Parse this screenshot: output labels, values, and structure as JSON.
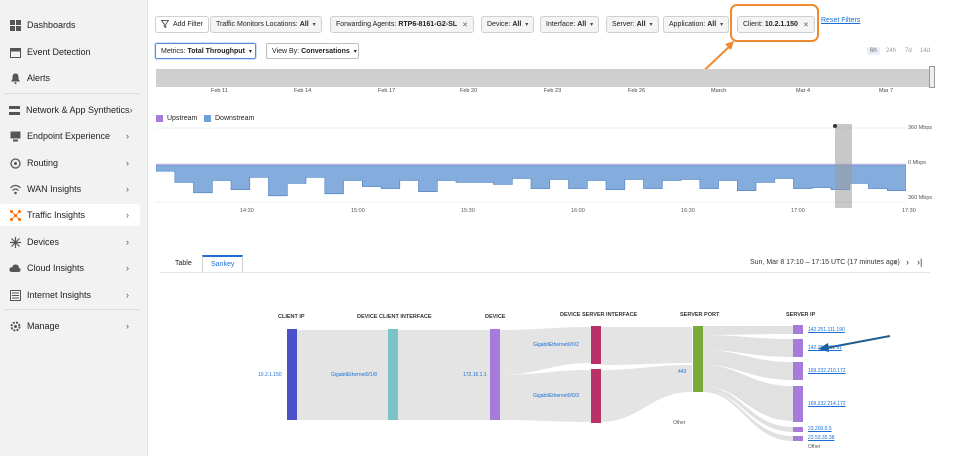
{
  "sidebar": {
    "items": [
      {
        "label": "Dashboards",
        "icon": "grid-icon",
        "chevron": false
      },
      {
        "label": "Event Detection",
        "icon": "calendar-icon",
        "chevron": false
      },
      {
        "label": "Alerts",
        "icon": "bell-icon",
        "chevron": false
      },
      {
        "label": "Network & App Synthetics",
        "icon": "network-icon",
        "chevron": true
      },
      {
        "label": "Endpoint Experience",
        "icon": "laptop-icon",
        "chevron": true
      },
      {
        "label": "Routing",
        "icon": "routing-icon",
        "chevron": true
      },
      {
        "label": "WAN Insights",
        "icon": "wifi-icon",
        "chevron": true
      },
      {
        "label": "Traffic Insights",
        "icon": "traffic-icon",
        "chevron": true
      },
      {
        "label": "Devices",
        "icon": "devices-icon",
        "chevron": true
      },
      {
        "label": "Cloud Insights",
        "icon": "cloud-icon",
        "chevron": true
      },
      {
        "label": "Internet Insights",
        "icon": "internet-icon",
        "chevron": true
      },
      {
        "label": "Manage",
        "icon": "gear-icon",
        "chevron": true
      }
    ],
    "active_color": "#ff6b00"
  },
  "filters": {
    "add_filter": "Add Filter",
    "chips": [
      {
        "key": "Traffic Monitors Locations:",
        "value": "All",
        "suffix": "dropdown"
      },
      {
        "key": "Forwarding Agents:",
        "value": "RTP6-8161-G2-SL",
        "suffix": "close"
      },
      {
        "key": "Device:",
        "value": "All",
        "suffix": "dropdown"
      },
      {
        "key": "Interface:",
        "value": "All",
        "suffix": "dropdown"
      },
      {
        "key": "Server:",
        "value": "All",
        "suffix": "dropdown"
      },
      {
        "key": "Application:",
        "value": "All",
        "suffix": "dropdown"
      },
      {
        "key": "Client:",
        "value": "10.2.1.150",
        "suffix": "close"
      }
    ],
    "reset": "Reset Filters",
    "highlight_color": "#ef8a2e"
  },
  "controls": {
    "metrics_key": "Metrics:",
    "metrics_value": "Total Throughput",
    "view_key": "View By:",
    "view_value": "Conversations",
    "ranges": [
      "6h",
      "24h",
      "7d",
      "14d"
    ],
    "selected_range": "6h"
  },
  "timeline": {
    "ticks": [
      "Feb 11",
      "Feb 14",
      "Feb 17",
      "Feb 20",
      "Feb 23",
      "Feb 26",
      "March",
      "Mar 4",
      "Mar 7"
    ]
  },
  "chart_data": {
    "type": "area",
    "series": [
      {
        "name": "Upstream",
        "color": "#a77bdc",
        "values": [
          0,
          0,
          0,
          0,
          0,
          0,
          0,
          0,
          0,
          0,
          0,
          0,
          0,
          0,
          0,
          0,
          0,
          0,
          0,
          0,
          0,
          0,
          0,
          0,
          0,
          0,
          0,
          0,
          0,
          0,
          0,
          0,
          0,
          0,
          0,
          0,
          0,
          0,
          0,
          0
        ]
      },
      {
        "name": "Downstream",
        "color": "#6f9fd8",
        "values": [
          -60,
          -170,
          -270,
          -150,
          -240,
          -120,
          -300,
          -180,
          -120,
          -280,
          -150,
          -210,
          -230,
          -150,
          -260,
          -150,
          -170,
          -170,
          -190,
          -130,
          -230,
          -140,
          -230,
          -150,
          -240,
          -140,
          -230,
          -150,
          -140,
          -230,
          -150,
          -250,
          -170,
          -130,
          -230,
          -220,
          -240,
          -180,
          -230,
          -250
        ]
      }
    ],
    "x_ticks": [
      "14:30",
      "15:00",
      "15:30",
      "16:00",
      "16:30",
      "17:00",
      "17:30"
    ],
    "y_ticks": [
      "360 Mbps",
      "0 Mbps",
      "360 Mbps"
    ],
    "ylim": [
      -360,
      360
    ],
    "selected_window": "17:10 - 17:15"
  },
  "tabs": [
    "Table",
    "Sankey"
  ],
  "selected_tab": "Sankey",
  "range_text": "Sun, Mar 8 17:10 – 17:15 UTC",
  "range_ago": "(17 minutes ago)",
  "sankey": {
    "columns": [
      "CLIENT IP",
      "DEVICE CLIENT INTERFACE",
      "DEVICE",
      "DEVICE SERVER INTERFACE",
      "SERVER PORT",
      "SERVER IP"
    ],
    "client_ip": "10.2.1.150",
    "client_interface": "GigabitEthernet0/1/8",
    "device": "172.16.1.1",
    "server_interfaces": [
      "GigabitEthernet0/0/2",
      "GigabitEthernet0/0/3"
    ],
    "server_port": "443",
    "server_port_other": "Other",
    "server_ips": [
      "142.251.111.190",
      "142.251.111.91",
      "169.232.210.172",
      "169.232.214.172",
      "23.200.0.5",
      "23.53.35.38",
      "Other"
    ]
  }
}
